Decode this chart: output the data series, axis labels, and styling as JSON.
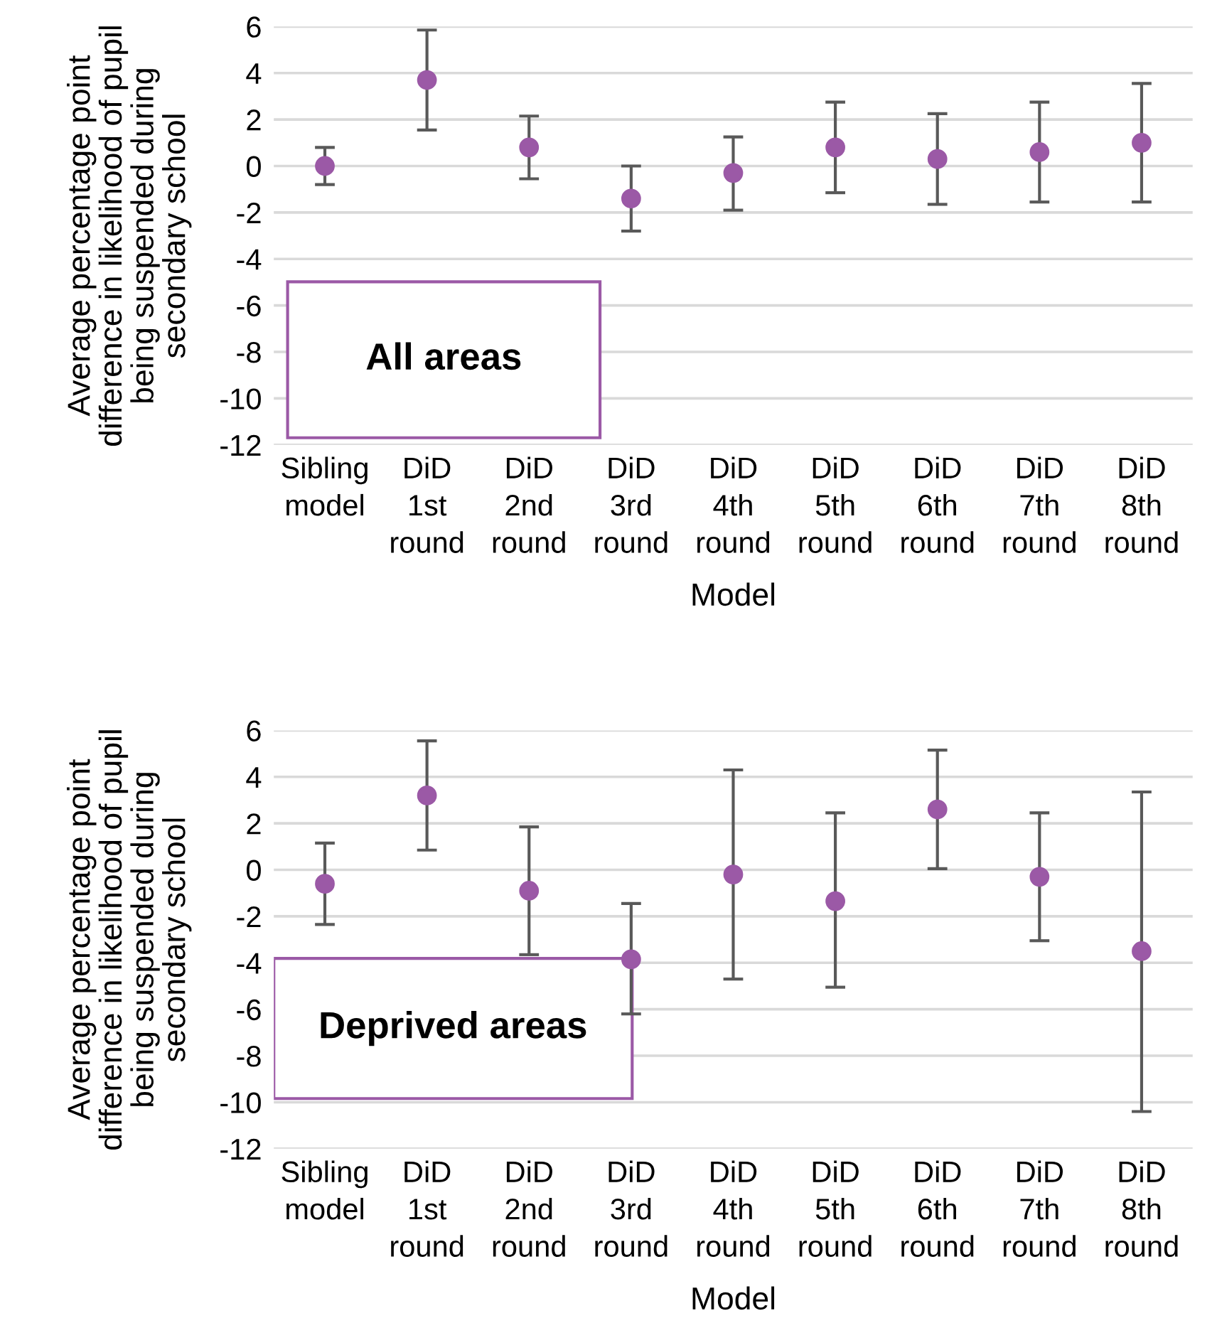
{
  "chart_data": [
    {
      "type": "scatter",
      "xlabel": "Model",
      "ylabel": "Average percentage point\ndifference in likelihood of pupil\nbeing suspended during\nsecondary school",
      "annotations": [
        "All areas"
      ],
      "categories": [
        "Sibling\nmodel",
        "DiD\n1st\nround",
        "DiD\n2nd\nround",
        "DiD\n3rd\nround",
        "DiD\n4th\nround",
        "DiD\n5th\nround",
        "DiD\n6th\nround",
        "DiD\n7th\nround",
        "DiD\n8th\nround"
      ],
      "series": [
        {
          "color": "#9b59a6",
          "values": [
            0,
            3.7,
            0.8,
            -1.4,
            -0.3,
            0.8,
            0.3,
            0.6,
            1.0
          ],
          "errors": [
            [
              -0.8,
              0.8
            ],
            [
              1.55,
              5.85
            ],
            [
              -0.55,
              2.15
            ],
            [
              -2.8,
              0
            ],
            [
              -1.9,
              1.25
            ],
            [
              -1.15,
              2.75
            ],
            [
              -1.65,
              2.25
            ],
            [
              -1.55,
              2.75
            ],
            [
              -1.55,
              3.55
            ]
          ]
        }
      ],
      "ylim": [
        -12,
        6
      ],
      "yticks": [
        {
          "value": -12,
          "label": "-12"
        },
        {
          "value": -10,
          "label": "-10"
        },
        {
          "value": -8,
          "label": "-8"
        },
        {
          "value": -6,
          "label": "-6"
        },
        {
          "value": -4,
          "label": "-4"
        },
        {
          "value": -2,
          "label": "-2"
        },
        0,
        2,
        4,
        6
      ],
      "grid": "y",
      "marker": "circle",
      "legend": false
    },
    {
      "type": "scatter",
      "xlabel": "Model",
      "ylabel": "Average percentage point\ndifference in likelihood of pupil\nbeing suspended during\nsecondary school",
      "annotations": [
        "Deprived areas"
      ],
      "categories": [
        "Sibling\nmodel",
        "DiD\n1st\nround",
        "DiD\n2nd\nround",
        "DiD\n3rd\nround",
        "DiD\n4th\nround",
        "DiD\n5th\nround",
        "DiD\n6th\nround",
        "DiD\n7th\nround",
        "DiD\n8th\nround"
      ],
      "series": [
        {
          "color": "#9b59a6",
          "values": [
            -0.6,
            3.2,
            -0.9,
            -3.85,
            -0.2,
            -1.35,
            2.6,
            -0.3,
            -3.5
          ],
          "errors": [
            [
              -2.35,
              1.15
            ],
            [
              0.85,
              5.55
            ],
            [
              -3.65,
              1.85
            ],
            [
              -6.2,
              -1.45
            ],
            [
              -4.7,
              4.3
            ],
            [
              -5.05,
              2.45
            ],
            [
              0.05,
              5.15
            ],
            [
              -3.05,
              2.45
            ],
            [
              -10.4,
              3.35
            ]
          ]
        }
      ],
      "ylim": [
        -12,
        6
      ],
      "yticks": [
        {
          "value": -12,
          "label": "-12"
        },
        {
          "value": -10,
          "label": "-10"
        },
        {
          "value": -8,
          "label": "-8"
        },
        {
          "value": -6,
          "label": "-6"
        },
        {
          "value": -4,
          "label": "-4"
        },
        {
          "value": -2,
          "label": "-2"
        },
        0,
        2,
        4,
        6
      ],
      "grid": "y",
      "marker": "circle",
      "legend": false
    }
  ]
}
